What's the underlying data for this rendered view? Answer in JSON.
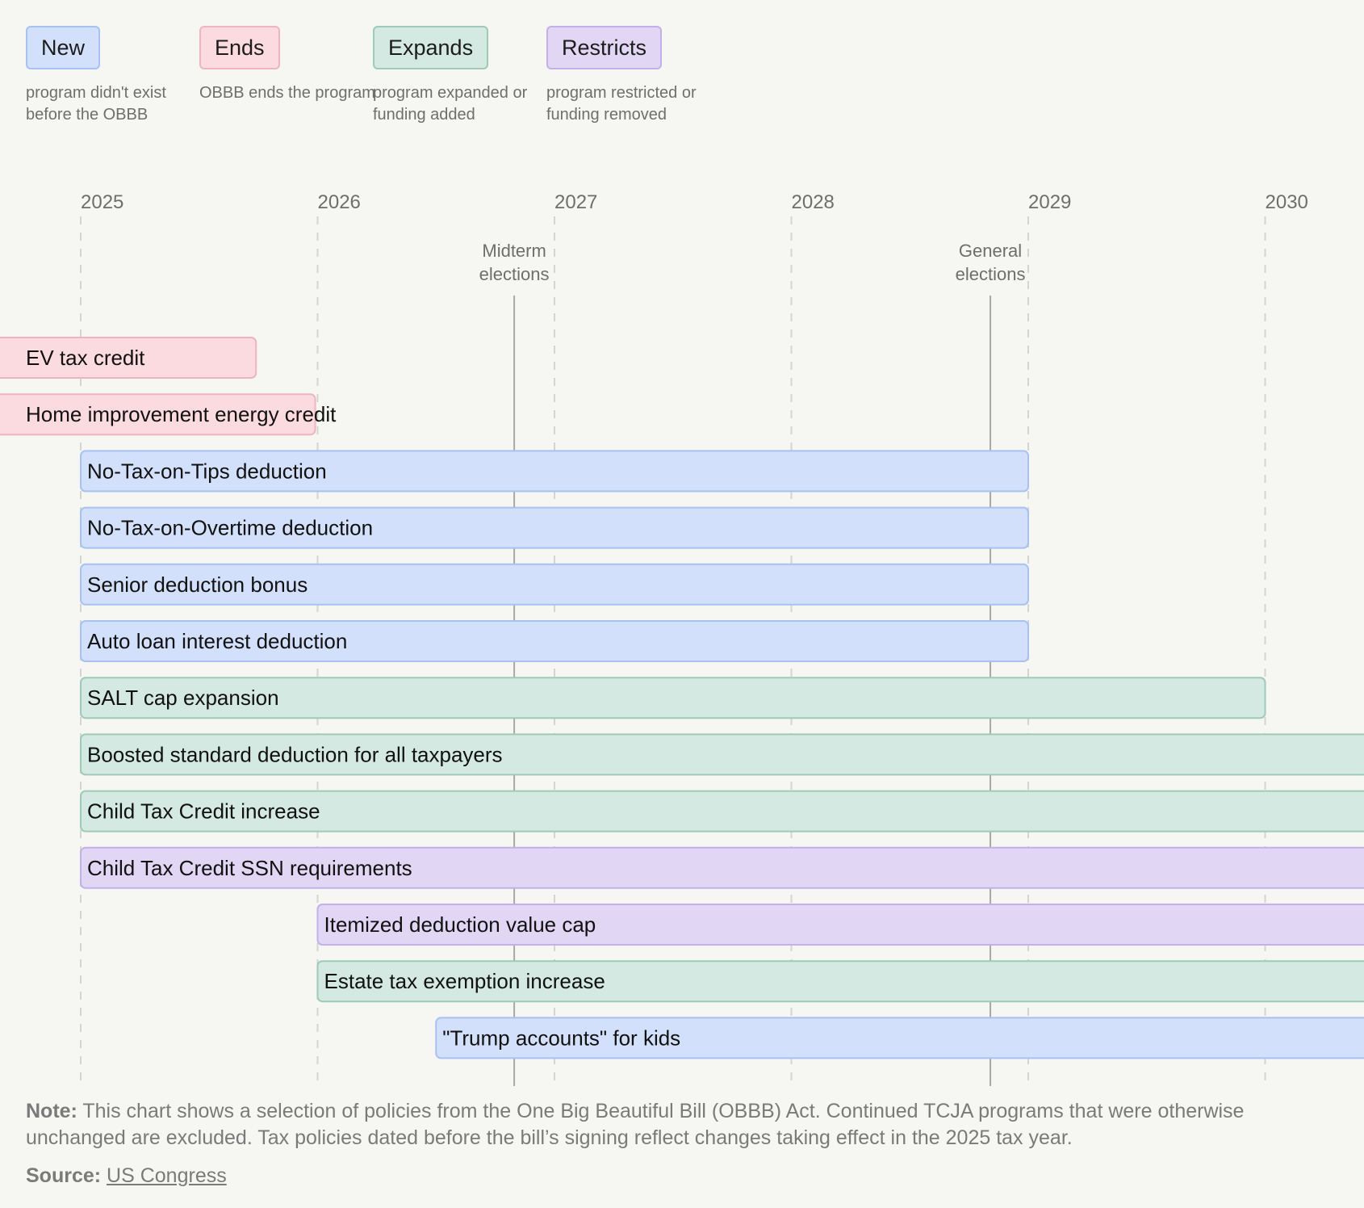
{
  "legend": [
    {
      "key": "new",
      "label": "New",
      "desc": "program didn't exist before the OBBB",
      "fill": "#d3e0fb",
      "stroke": "#a7c1f4"
    },
    {
      "key": "ends",
      "label": "Ends",
      "desc": "OBBB ends the program",
      "fill": "#fbdbe0",
      "stroke": "#efb4bf"
    },
    {
      "key": "expands",
      "label": "Expands",
      "desc": "program expanded or funding added",
      "fill": "#d3e9e2",
      "stroke": "#9fcab9"
    },
    {
      "key": "restricts",
      "label": "Restricts",
      "desc": "program restricted or funding removed",
      "fill": "#e1d7f5",
      "stroke": "#c2b0ea"
    }
  ],
  "chart_data": {
    "type": "timeline",
    "x_axis": {
      "ticks": [
        2025,
        2026,
        2027,
        2028,
        2029,
        2030
      ],
      "range": [
        2024.75,
        2030.42
      ]
    },
    "events": [
      {
        "label_lines": [
          "Midterm",
          "elections"
        ],
        "date": 2026.83
      },
      {
        "label_lines": [
          "General",
          "elections"
        ],
        "date": 2028.84
      }
    ],
    "bars": [
      {
        "label": "EV tax credit",
        "category": "ends",
        "start": 2024.6,
        "end": 2025.74
      },
      {
        "label": "Home improvement energy credit",
        "category": "ends",
        "start": 2024.6,
        "end": 2025.99
      },
      {
        "label": "No-Tax-on-Tips deduction",
        "category": "new",
        "start": 2025.0,
        "end": 2029.0
      },
      {
        "label": "No-Tax-on-Overtime deduction",
        "category": "new",
        "start": 2025.0,
        "end": 2029.0
      },
      {
        "label": "Senior deduction bonus",
        "category": "new",
        "start": 2025.0,
        "end": 2029.0
      },
      {
        "label": "Auto loan interest deduction",
        "category": "new",
        "start": 2025.0,
        "end": 2029.0
      },
      {
        "label": "SALT cap expansion",
        "category": "expands",
        "start": 2025.0,
        "end": 2030.0
      },
      {
        "label": "Boosted standard deduction for all taxpayers",
        "category": "expands",
        "start": 2025.0,
        "end": 2030.6
      },
      {
        "label": "Child Tax Credit increase",
        "category": "expands",
        "start": 2025.0,
        "end": 2030.6
      },
      {
        "label": "Child Tax Credit SSN requirements",
        "category": "restricts",
        "start": 2025.0,
        "end": 2030.6
      },
      {
        "label": "Itemized deduction value cap",
        "category": "restricts",
        "start": 2026.0,
        "end": 2030.6
      },
      {
        "label": "Estate tax exemption increase",
        "category": "expands",
        "start": 2026.0,
        "end": 2030.6
      },
      {
        "label": "\"Trump accounts\" for kids",
        "category": "new",
        "start": 2026.5,
        "end": 2030.6
      }
    ]
  },
  "footer": {
    "note_label": "Note:",
    "note_text": " This chart shows a selection of policies from the One Big Beautiful Bill (OBBB) Act. Continued TCJA programs that were otherwise unchanged are excluded. Tax policies dated before the bill’s signing reflect changes taking effect in the 2025 tax year.",
    "source_label": "Source:",
    "source_link": "US Congress"
  }
}
